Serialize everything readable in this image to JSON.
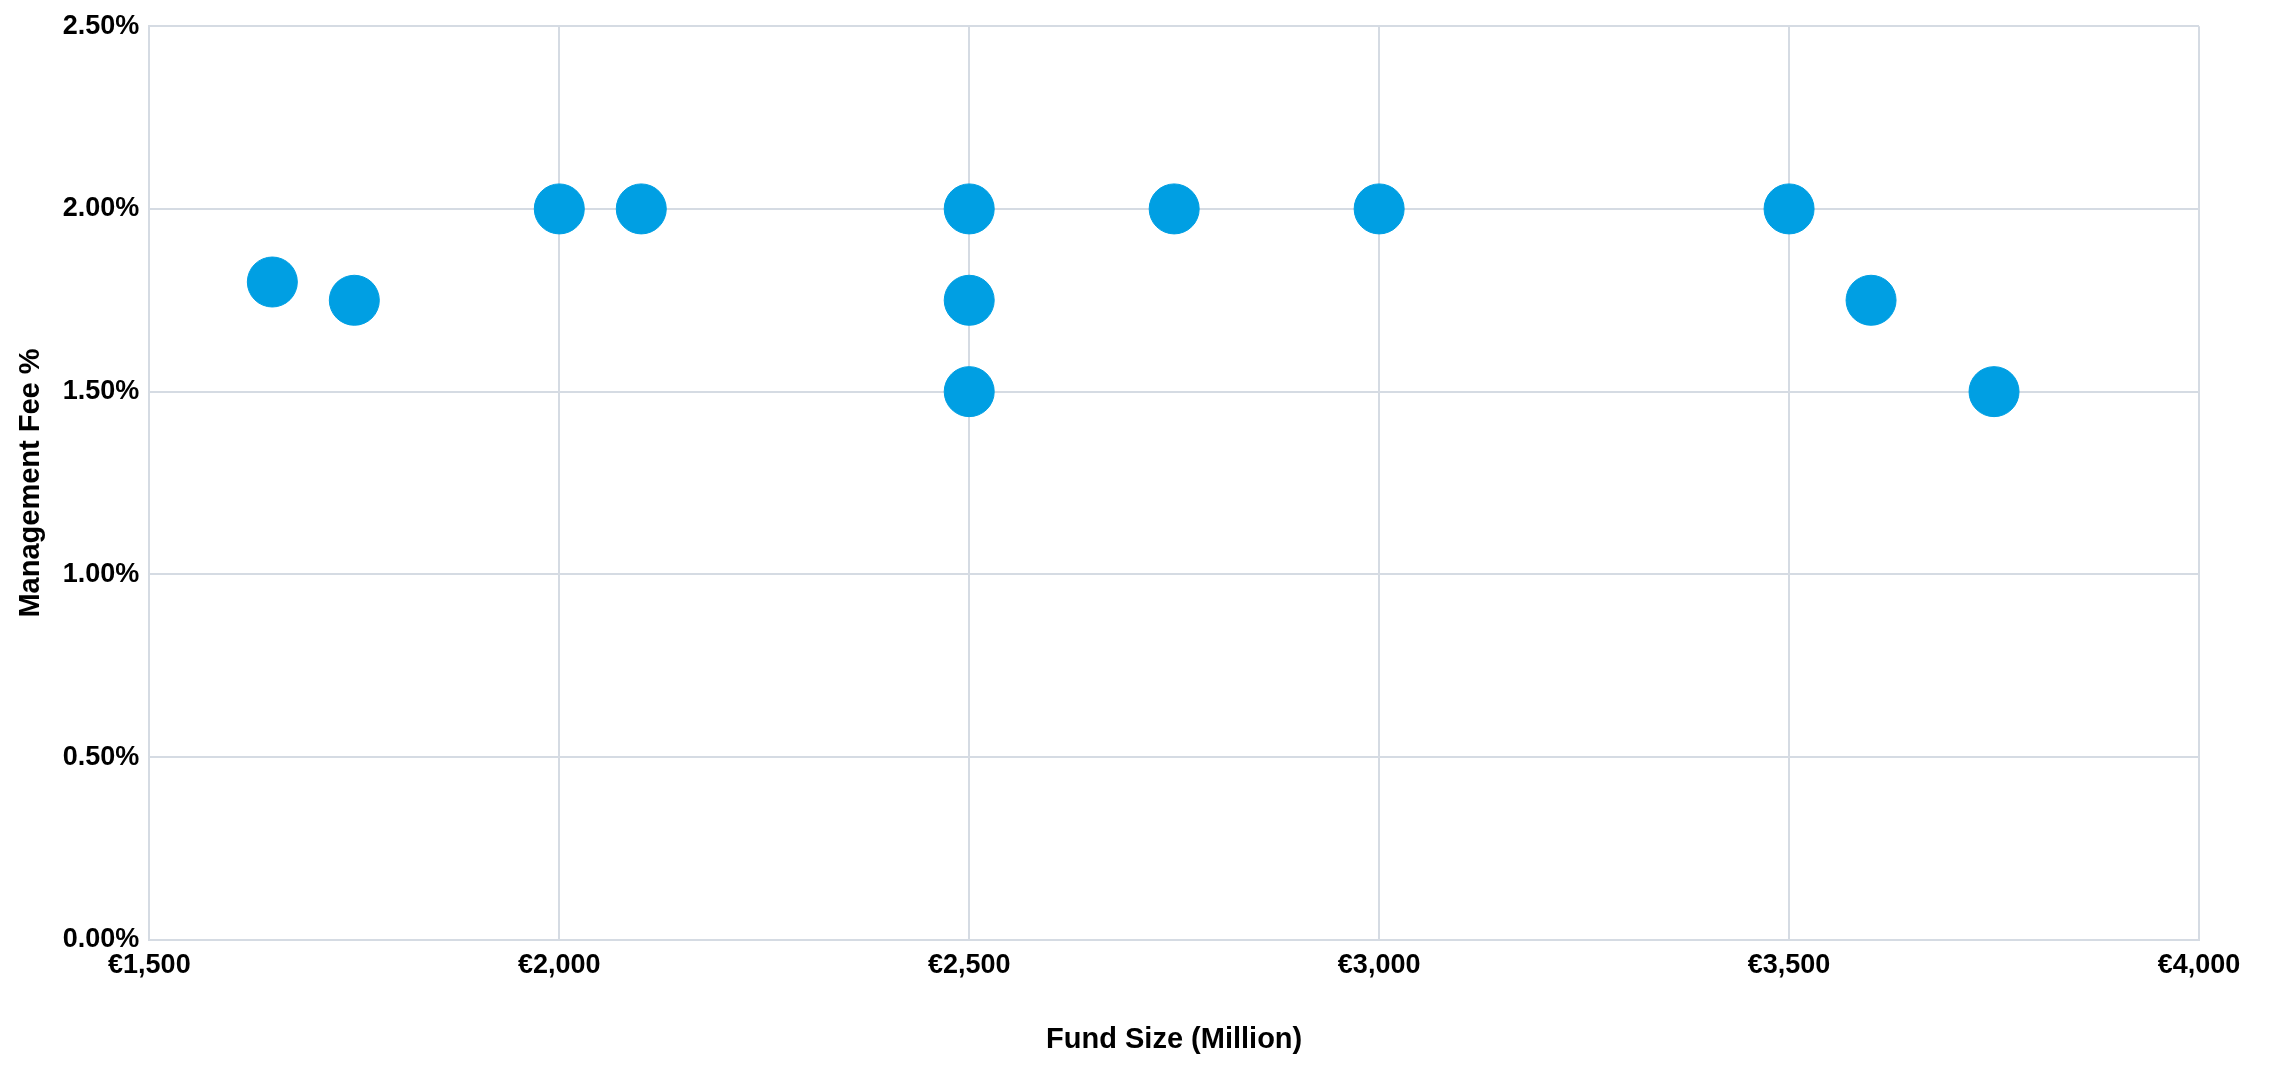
{
  "chart_data": {
    "type": "scatter",
    "xlabel": "Fund Size (Million)",
    "ylabel": "Management Fee %",
    "x": [
      1650,
      1750,
      2000,
      2100,
      2500,
      2500,
      2500,
      2750,
      3000,
      3500,
      3600,
      3750
    ],
    "series": [
      {
        "color": "#009fe3",
        "values": [
          1.8,
          1.75,
          2.0,
          2.0,
          2.0,
          1.75,
          1.5,
          2.0,
          2.0,
          2.0,
          1.75,
          1.5
        ]
      }
    ],
    "xlim": [
      1500,
      4000
    ],
    "xticks": [
      {
        "value": 1500,
        "label": "€1,500"
      },
      {
        "value": 2000,
        "label": "€2,000"
      },
      {
        "value": 2500,
        "label": "€2,500"
      },
      {
        "value": 3000,
        "label": "€3,000"
      },
      {
        "value": 3500,
        "label": "€3,500"
      },
      {
        "value": 4000,
        "label": "€4,000"
      }
    ],
    "ylim": [
      0,
      2.5
    ],
    "yticks": [
      {
        "value": 0,
        "label": "0.00%"
      },
      {
        "value": 0.5,
        "label": "0.50%"
      },
      {
        "value": 1,
        "label": "1.00%"
      },
      {
        "value": 1.5,
        "label": "1.50%"
      },
      {
        "value": 2,
        "label": "2.00%"
      },
      {
        "value": 2.5,
        "label": "2.50%"
      }
    ],
    "grid": true,
    "legend": false,
    "marker": "circle"
  }
}
